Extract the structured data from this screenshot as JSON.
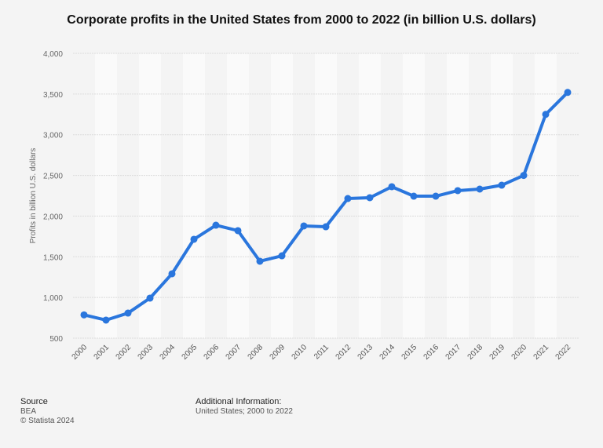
{
  "chart_data": {
    "type": "line",
    "title": "Corporate profits in the United States from 2000 to 2022 (in billion U.S. dollars)",
    "xlabel": "",
    "ylabel": "Profits in billion U.S. dollars",
    "categories": [
      "2000",
      "2001",
      "2002",
      "2003",
      "2004",
      "2005",
      "2006",
      "2007",
      "2008",
      "2009",
      "2010",
      "2011",
      "2012",
      "2013",
      "2014",
      "2015",
      "2016",
      "2017",
      "2018",
      "2019",
      "2020",
      "2021",
      "2022"
    ],
    "values": [
      786,
      722,
      808,
      992,
      1291,
      1715,
      1888,
      1821,
      1445,
      1512,
      1879,
      1869,
      2216,
      2226,
      2361,
      2245,
      2245,
      2313,
      2332,
      2380,
      2500,
      3250,
      3520
    ],
    "ylim": [
      500,
      4000
    ],
    "yticks": [
      "500",
      "1,000",
      "1,500",
      "2,000",
      "2,500",
      "3,000",
      "3,500",
      "4,000"
    ],
    "grid": true,
    "color": "#2a76dd"
  },
  "footer": {
    "source_label": "Source",
    "source_value": "BEA",
    "copyright": "© Statista 2024",
    "info_label": "Additional Information:",
    "info_value": "United States; 2000 to 2022"
  }
}
